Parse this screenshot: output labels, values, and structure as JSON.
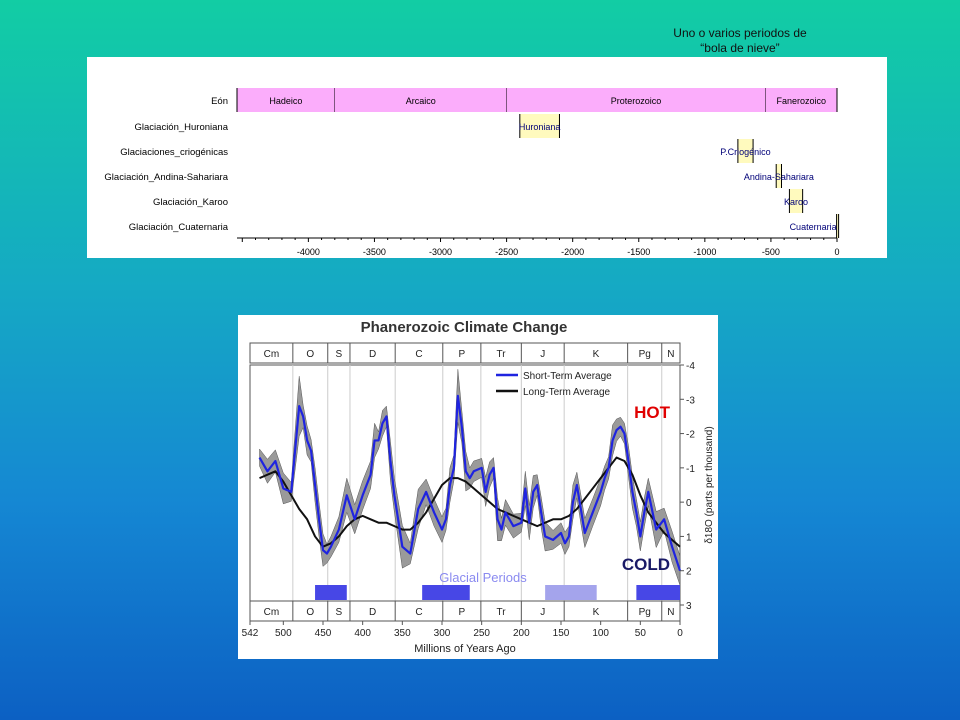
{
  "annotation": {
    "line1": "Uno o varios periodos de",
    "line2": "“bola de nieve”"
  },
  "colors": {
    "eon_fill": "#fbadfb",
    "glaciation_fill": "#fffabe",
    "glacial_dark": "#4747e6",
    "glacial_light": "#a4a4ec",
    "short_term": "#1f24e0",
    "long_term": "#111111",
    "band": "#9a9a9a"
  },
  "chart_data": [
    {
      "type": "table",
      "title": "",
      "row_labels": [
        "Eón",
        "Glaciación_Huroniana",
        "Glaciaciones_criogénicas",
        "Glaciación_Andina-Sahariara",
        "Glaciación_Karoo",
        "Glaciación_Cuaternaria"
      ],
      "eons": [
        {
          "name": "Hadeico",
          "start": -4540,
          "end": -3800
        },
        {
          "name": "Arcaico",
          "start": -3800,
          "end": -2500
        },
        {
          "name": "Proterozoico",
          "start": -2500,
          "end": -541
        },
        {
          "name": "Fanerozoico",
          "start": -541,
          "end": 0
        }
      ],
      "glaciations": [
        {
          "row": 1,
          "label": "Huroniana",
          "start": -2400,
          "end": -2100
        },
        {
          "row": 2,
          "label": "P.Criogénico",
          "start": -750,
          "end": -635
        },
        {
          "row": 3,
          "label": "Andina-Sahariara",
          "start": -460,
          "end": -420
        },
        {
          "row": 4,
          "label": "Karoo",
          "start": -360,
          "end": -260
        },
        {
          "row": 5,
          "label": "Cuaternaria",
          "start": -3,
          "end": 0
        }
      ],
      "x_ticks": [
        -4000,
        -3500,
        -3000,
        -2500,
        -2000,
        -1500,
        -1000,
        -500,
        0
      ],
      "xlim": [
        -4540,
        0
      ]
    },
    {
      "type": "line",
      "title": "Phanerozoic Climate Change",
      "xlabel": "Millions of Years Ago",
      "ylabel": "δ18O (parts per thousand)",
      "xlim": [
        542,
        0
      ],
      "ylim": [
        -4,
        3
      ],
      "y_reversed": true,
      "x_ticks": [
        542,
        500,
        450,
        400,
        350,
        300,
        250,
        200,
        150,
        100,
        50,
        0
      ],
      "y_ticks": [
        -4,
        -3,
        -2,
        -1,
        0,
        1,
        2,
        3
      ],
      "labels": {
        "hot": "HOT",
        "cold": "COLD",
        "glacial": "Glacial Periods"
      },
      "periods": [
        {
          "name": "Cm",
          "start": 542,
          "end": 488
        },
        {
          "name": "O",
          "start": 488,
          "end": 444
        },
        {
          "name": "S",
          "start": 444,
          "end": 416
        },
        {
          "name": "D",
          "start": 416,
          "end": 359
        },
        {
          "name": "C",
          "start": 359,
          "end": 299
        },
        {
          "name": "P",
          "start": 299,
          "end": 251
        },
        {
          "name": "Tr",
          "start": 251,
          "end": 200
        },
        {
          "name": "J",
          "start": 200,
          "end": 146
        },
        {
          "name": "K",
          "start": 146,
          "end": 66
        },
        {
          "name": "Pg",
          "start": 66,
          "end": 23
        },
        {
          "name": "N",
          "start": 23,
          "end": 0
        }
      ],
      "glacial_periods": [
        {
          "start": 460,
          "end": 420,
          "shade": "dark"
        },
        {
          "start": 325,
          "end": 265,
          "shade": "dark"
        },
        {
          "start": 170,
          "end": 105,
          "shade": "light"
        },
        {
          "start": 55,
          "end": 0,
          "shade": "dark"
        }
      ],
      "series": [
        {
          "name": "Short-Term Average",
          "x": [
            530,
            520,
            510,
            500,
            490,
            480,
            475,
            470,
            465,
            460,
            455,
            450,
            445,
            440,
            430,
            420,
            410,
            400,
            390,
            385,
            380,
            375,
            370,
            365,
            360,
            350,
            340,
            330,
            320,
            310,
            300,
            295,
            290,
            285,
            280,
            275,
            270,
            265,
            260,
            250,
            245,
            240,
            235,
            230,
            225,
            220,
            210,
            200,
            195,
            190,
            185,
            180,
            175,
            170,
            160,
            150,
            145,
            140,
            135,
            130,
            125,
            120,
            110,
            100,
            95,
            90,
            85,
            80,
            75,
            70,
            65,
            60,
            55,
            50,
            45,
            40,
            30,
            20,
            10,
            0
          ],
          "y": [
            -1.3,
            -0.9,
            -1.2,
            -0.4,
            -0.3,
            -2.8,
            -2.5,
            -1.8,
            -1.5,
            -0.5,
            0.5,
            1.4,
            1.5,
            1.3,
            0.8,
            -0.2,
            0.5,
            -0.2,
            -0.8,
            -1.8,
            -1.8,
            -2.3,
            -2.5,
            -1.2,
            -0.2,
            1.3,
            1.5,
            0.2,
            -0.3,
            0.3,
            0.8,
            0.5,
            -0.5,
            -1.0,
            -3.1,
            -2.2,
            -0.9,
            -0.7,
            -0.9,
            -1.0,
            -0.3,
            -0.8,
            -1.0,
            0.5,
            0.8,
            0.3,
            0.7,
            0.6,
            -0.4,
            0.6,
            -0.3,
            -0.5,
            0.3,
            1.0,
            1.1,
            0.9,
            1.2,
            1.0,
            0.0,
            -0.5,
            0.2,
            0.9,
            0.3,
            -0.3,
            -0.7,
            -1.0,
            -1.8,
            -2.1,
            -2.2,
            -2.0,
            -1.2,
            -0.3,
            0.3,
            1.0,
            0.3,
            -0.3,
            0.8,
            0.5,
            1.3,
            2.0
          ]
        },
        {
          "name": "Long-Term Average",
          "x": [
            530,
            520,
            510,
            500,
            490,
            480,
            470,
            460,
            450,
            440,
            430,
            420,
            410,
            400,
            390,
            380,
            370,
            360,
            350,
            340,
            330,
            320,
            310,
            300,
            290,
            280,
            270,
            260,
            250,
            240,
            230,
            220,
            210,
            200,
            190,
            180,
            170,
            160,
            150,
            140,
            130,
            120,
            110,
            100,
            90,
            80,
            70,
            60,
            50,
            40,
            30,
            20,
            10,
            0
          ],
          "y": [
            -0.7,
            -0.8,
            -0.9,
            -0.6,
            -0.2,
            0.2,
            0.5,
            1.0,
            1.3,
            1.2,
            1.0,
            0.7,
            0.5,
            0.4,
            0.5,
            0.6,
            0.6,
            0.7,
            0.8,
            0.8,
            0.6,
            0.3,
            -0.1,
            -0.5,
            -0.7,
            -0.7,
            -0.6,
            -0.4,
            -0.2,
            0.0,
            0.2,
            0.3,
            0.4,
            0.5,
            0.6,
            0.7,
            0.6,
            0.5,
            0.5,
            0.4,
            0.2,
            -0.1,
            -0.4,
            -0.7,
            -1.0,
            -1.3,
            -1.2,
            -0.8,
            -0.2,
            0.3,
            0.6,
            0.9,
            1.1,
            1.3
          ]
        }
      ]
    }
  ]
}
